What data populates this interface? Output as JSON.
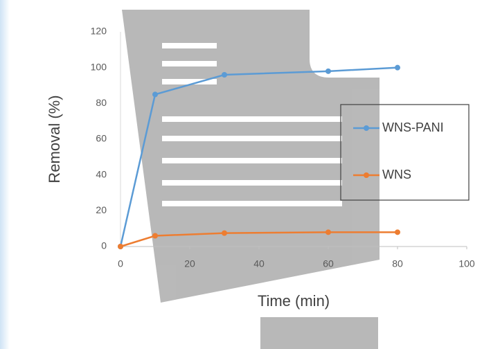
{
  "chart_data": {
    "type": "line",
    "x": [
      0,
      10,
      30,
      60,
      80
    ],
    "series": [
      {
        "name": "WNS-PANI",
        "color": "#5b9bd5",
        "values": [
          0,
          85,
          96,
          98,
          100
        ]
      },
      {
        "name": "WNS",
        "color": "#ed7d31",
        "values": [
          0,
          6,
          7.5,
          8,
          8
        ]
      }
    ],
    "x_label": "Time (min)",
    "y_label": "Removal (%)",
    "xlim": [
      0,
      100
    ],
    "xticks": [
      0,
      20,
      40,
      60,
      80,
      100
    ],
    "ylim": [
      0,
      120
    ],
    "yticks": [
      0,
      20,
      40,
      60,
      80,
      100,
      120
    ],
    "grid": false,
    "legend": "right"
  }
}
